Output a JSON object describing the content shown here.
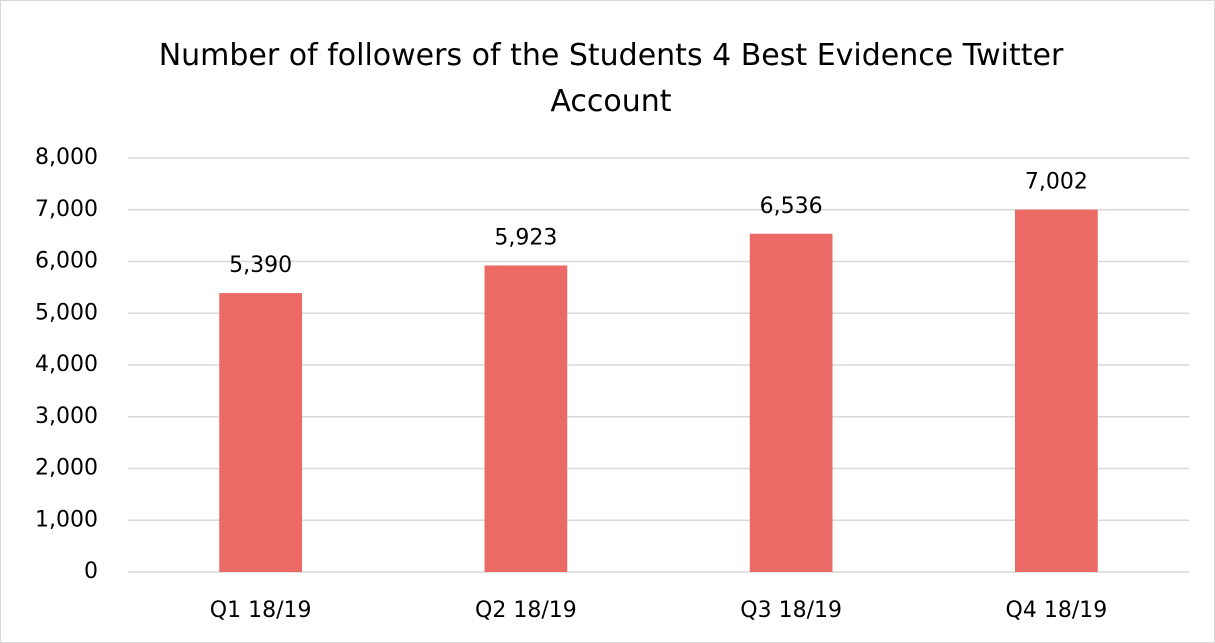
{
  "chart_data": {
    "type": "bar",
    "title": "Number of followers of the Students 4 Best Evidence Twitter Account",
    "categories": [
      "Q1 18/19",
      "Q2 18/19",
      "Q3 18/19",
      "Q4 18/19"
    ],
    "values": [
      5390,
      5923,
      6536,
      7002
    ],
    "value_labels": [
      "5,390",
      "5,923",
      "6,536",
      "7,002"
    ],
    "color": "#ec6a65",
    "ylim": [
      0,
      8000
    ],
    "yticks": [
      0,
      {
        "value": 1000,
        "label": "1,000"
      },
      {
        "value": 2000,
        "label": "2,000"
      },
      {
        "value": 3000,
        "label": "3,000"
      },
      {
        "value": 4000,
        "label": "4,000"
      },
      {
        "value": 5000,
        "label": "5,000"
      },
      {
        "value": 6000,
        "label": "6,000"
      },
      {
        "value": 7000,
        "label": "7,000"
      },
      {
        "value": 8000,
        "label": "8,000"
      }
    ],
    "grid": true
  }
}
